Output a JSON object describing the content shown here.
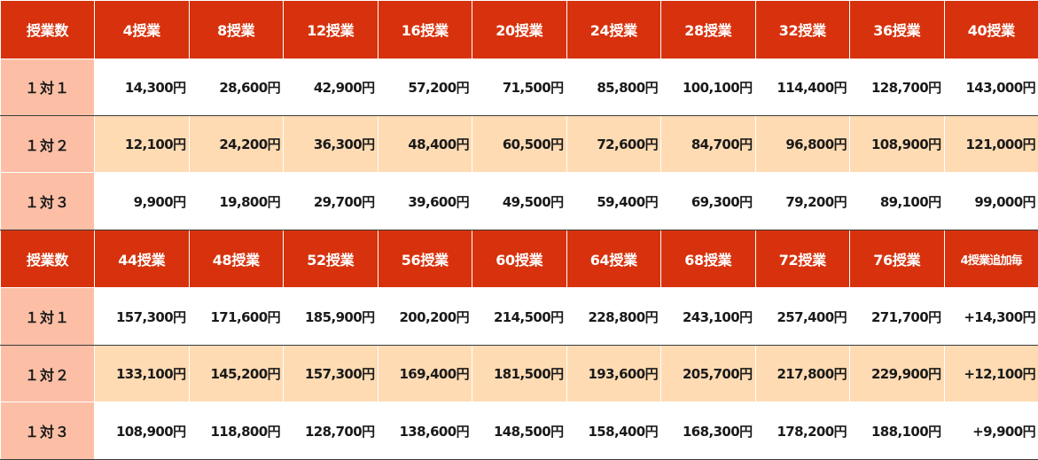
{
  "blocks": [
    {
      "header": [
        "授業数",
        "4授業",
        "8授業",
        "12授業",
        "16授業",
        "20授業",
        "24授業",
        "28授業",
        "32授業",
        "36授業",
        "40授業"
      ],
      "rows": [
        {
          "label": "１対１",
          "values": [
            "14,300円",
            "28,600円",
            "42,900円",
            "57,200円",
            "71,500円",
            "85,800円",
            "100,100円",
            "114,400円",
            "128,700円",
            "143,000円"
          ]
        },
        {
          "label": "１対２",
          "values": [
            "12,100円",
            "24,200円",
            "36,300円",
            "48,400円",
            "60,500円",
            "72,600円",
            "84,700円",
            "96,800円",
            "108,900円",
            "121,000円"
          ]
        },
        {
          "label": "１対３",
          "values": [
            "9,900円",
            "19,800円",
            "29,700円",
            "39,600円",
            "49,500円",
            "59,400円",
            "69,300円",
            "79,200円",
            "89,100円",
            "99,000円"
          ]
        }
      ]
    },
    {
      "header": [
        "授業数",
        "44授業",
        "48授業",
        "52授業",
        "56授業",
        "60授業",
        "64授業",
        "68授業",
        "72授業",
        "76授業",
        "4授業追加毎"
      ],
      "rows": [
        {
          "label": "１対１",
          "values": [
            "157,300円",
            "171,600円",
            "185,900円",
            "200,200円",
            "214,500円",
            "228,800円",
            "243,100円",
            "257,400円",
            "271,700円",
            "+14,300円"
          ]
        },
        {
          "label": "１対２",
          "values": [
            "133,100円",
            "145,200円",
            "157,300円",
            "169,400円",
            "181,500円",
            "193,600円",
            "205,700円",
            "217,800円",
            "229,900円",
            "+12,100円"
          ]
        },
        {
          "label": "１対３",
          "values": [
            "108,900円",
            "118,800円",
            "128,700円",
            "138,600円",
            "148,500円",
            "158,400円",
            "168,300円",
            "178,200円",
            "188,100円",
            "+9,900円"
          ]
        }
      ]
    }
  ],
  "colors": {
    "header_bg": "#d7320d",
    "header_text": "#ffffff",
    "label_bg": "#fcbfa6",
    "peach_row_bg": "#ffdbb3",
    "white_row_bg": "#ffffff"
  }
}
